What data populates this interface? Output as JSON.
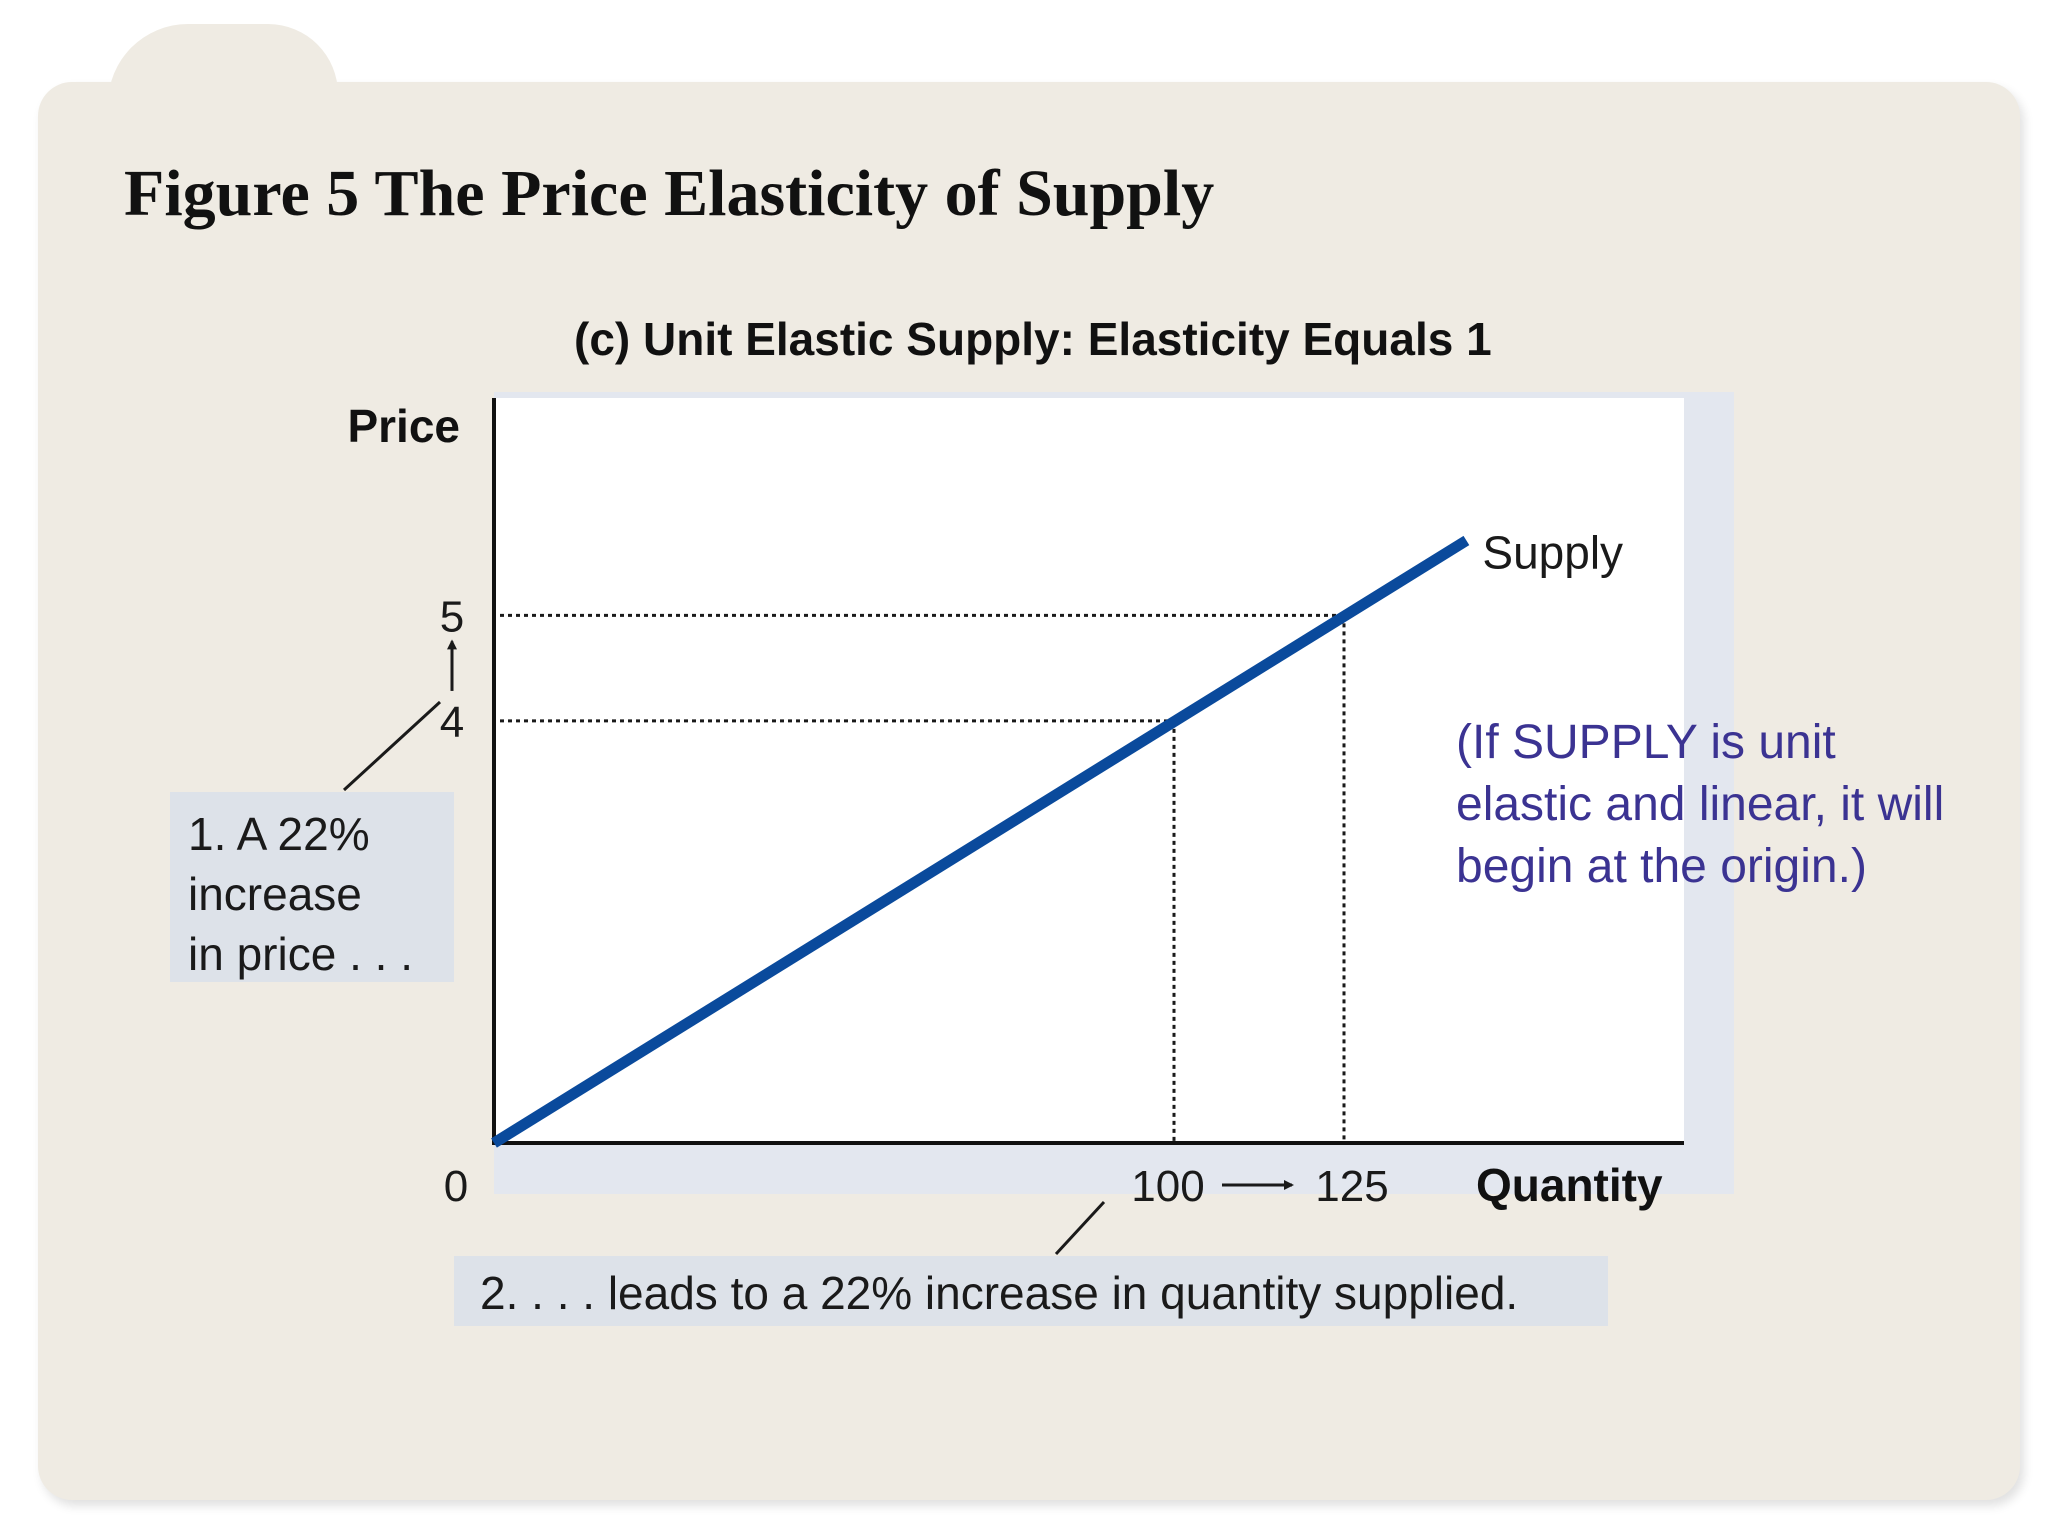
{
  "figure_title": "Figure 5 The Price Elasticity of Supply",
  "colors": {
    "card": "#efebe3",
    "supply_line": "#0a4a9c",
    "note_text": "#3b3392",
    "annotation_box": "#dde2e9"
  },
  "chart_data": {
    "type": "line",
    "title": "(c) Unit Elastic Supply: Elasticity Equals 1",
    "xlabel": "Quantity",
    "ylabel": "Price",
    "origin_label": "0",
    "xlim": [
      0,
      175
    ],
    "ylim": [
      0,
      7.07
    ],
    "grid": false,
    "series": [
      {
        "name": "Supply",
        "x": [
          0,
          143
        ],
        "y": [
          0,
          5.71
        ]
      }
    ],
    "x_ticks": [
      {
        "value": 100,
        "label": "100"
      },
      {
        "value": 125,
        "label": "125"
      }
    ],
    "y_ticks": [
      {
        "value": 4,
        "label": "4"
      },
      {
        "value": 5,
        "label": "5"
      }
    ],
    "reference_points": [
      {
        "x": 100,
        "y": 4
      },
      {
        "x": 125,
        "y": 5
      }
    ]
  },
  "annotations": {
    "price_change": [
      "1. A 22%",
      "increase",
      "in price . . ."
    ],
    "quantity_change": "2.  . . . leads to a 22% increase in quantity supplied.",
    "note": [
      "(If SUPPLY is unit",
      "elastic and linear, it will",
      "begin at the origin.)"
    ]
  }
}
